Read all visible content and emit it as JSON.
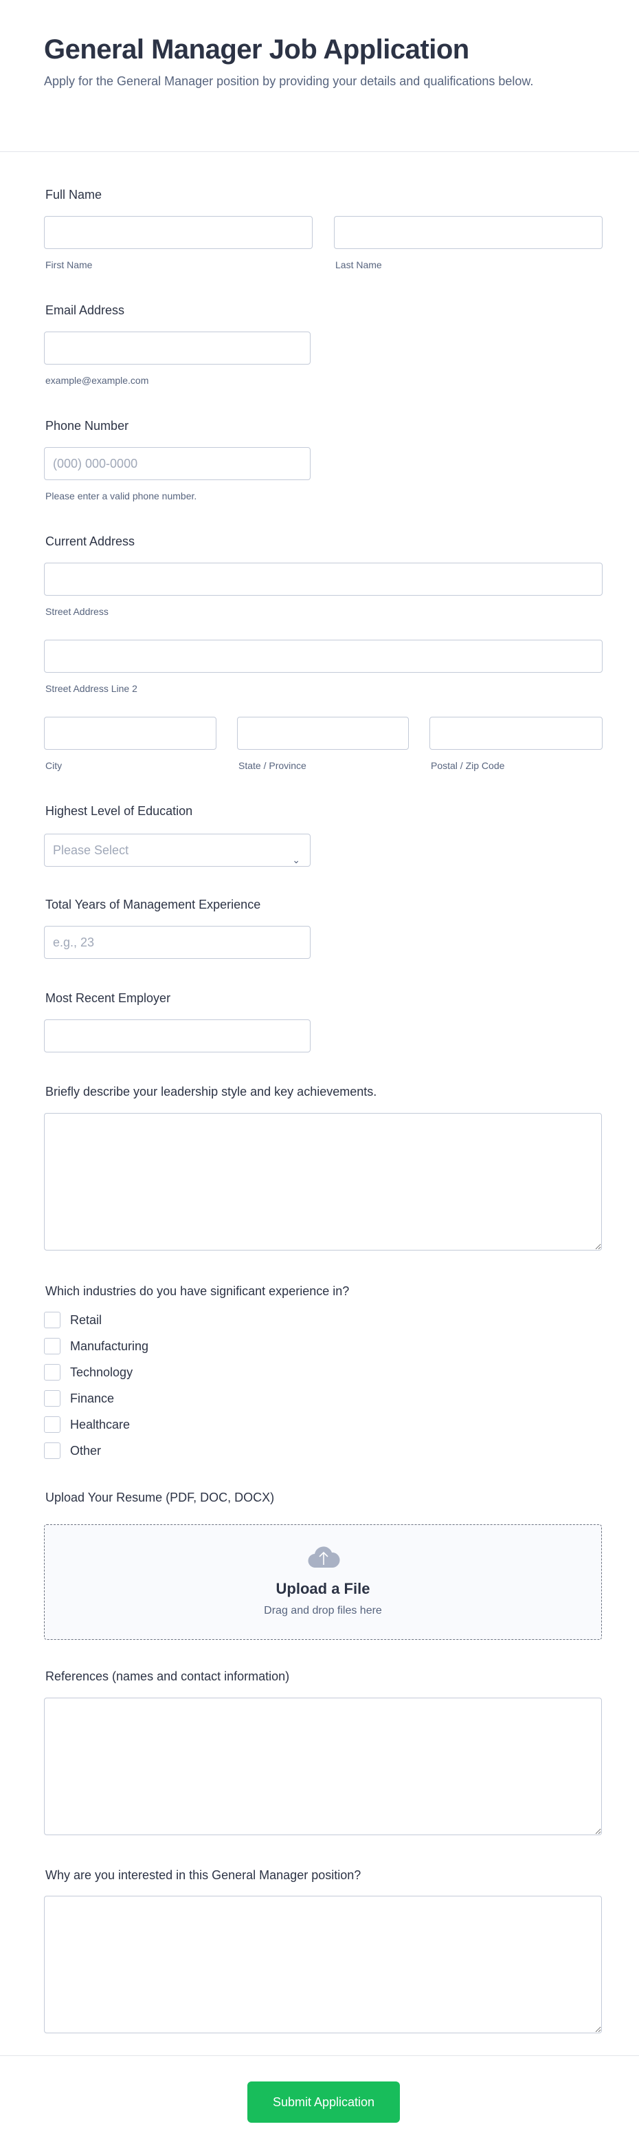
{
  "header": {
    "title": "General Manager Job Application",
    "subtitle": "Apply for the General Manager position by providing your details and qualifications below."
  },
  "fields": {
    "full_name": {
      "label": "Full Name",
      "first": "First Name",
      "last": "Last Name"
    },
    "email": {
      "label": "Email Address",
      "hint": "example@example.com"
    },
    "phone": {
      "label": "Phone Number",
      "placeholder": "(000) 000-0000",
      "hint": "Please enter a valid phone number."
    },
    "address": {
      "label": "Current Address",
      "street": "Street Address",
      "street2": "Street Address Line 2",
      "city": "City",
      "state": "State / Province",
      "zip": "Postal / Zip Code"
    },
    "education": {
      "label": "Highest Level of Education",
      "selected": "Please Select"
    },
    "years": {
      "label": "Total Years of Management Experience",
      "placeholder": "e.g., 23"
    },
    "employer": {
      "label": "Most Recent Employer"
    },
    "leadership": {
      "label": "Briefly describe your leadership style and key achievements."
    },
    "industries": {
      "label": "Which industries do you have significant experience in?",
      "options": [
        "Retail",
        "Manufacturing",
        "Technology",
        "Finance",
        "Healthcare",
        "Other"
      ]
    },
    "resume": {
      "label": "Upload Your Resume (PDF, DOC, DOCX)",
      "title": "Upload a File",
      "hint": "Drag and drop files here",
      "icon": "cloud-upload-icon"
    },
    "references": {
      "label": "References (names and contact information)"
    },
    "why": {
      "label": "Why are you interested in this General Manager position?"
    }
  },
  "submit": {
    "label": "Submit Application",
    "color": "#18bd5b"
  }
}
